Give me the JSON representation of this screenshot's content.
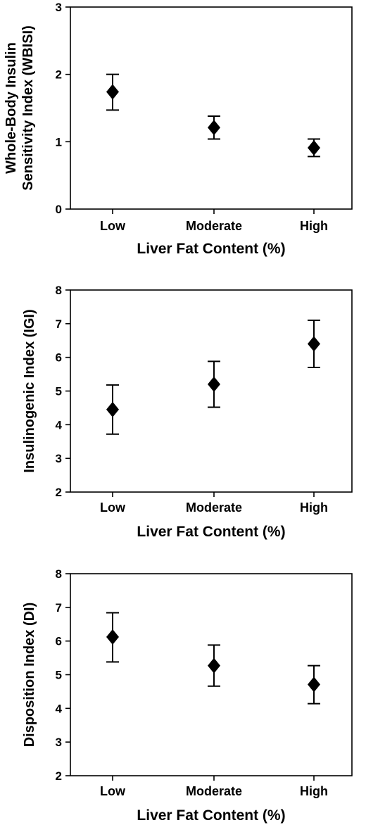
{
  "chart_data": [
    {
      "type": "scatter",
      "categories": [
        "Low",
        "Moderate",
        "High"
      ],
      "values": [
        1.74,
        1.21,
        0.91
      ],
      "error_low": [
        1.47,
        1.04,
        0.78
      ],
      "error_high": [
        2.0,
        1.38,
        1.04
      ],
      "xlabel": "Liver Fat Content (%)",
      "ylabel_lines": [
        "Whole-Body Insulin",
        "Sensitivity Index (WBISI)"
      ],
      "ylim": [
        0,
        3
      ],
      "yticks": [
        0,
        1,
        2,
        3
      ],
      "marker": "diamond",
      "grid": false
    },
    {
      "type": "scatter",
      "categories": [
        "Low",
        "Moderate",
        "High"
      ],
      "values": [
        4.45,
        5.2,
        6.4
      ],
      "error_low": [
        3.72,
        4.52,
        5.7
      ],
      "error_high": [
        5.18,
        5.88,
        7.1
      ],
      "xlabel": "Liver Fat Content (%)",
      "ylabel_lines": [
        "Insulinogenic Index (IGI)"
      ],
      "ylim": [
        2,
        8
      ],
      "yticks": [
        2,
        3,
        4,
        5,
        6,
        7,
        8
      ],
      "marker": "diamond",
      "grid": false
    },
    {
      "type": "scatter",
      "categories": [
        "Low",
        "Moderate",
        "High"
      ],
      "values": [
        6.12,
        5.27,
        4.71
      ],
      "error_low": [
        5.38,
        4.66,
        4.14
      ],
      "error_high": [
        6.84,
        5.88,
        5.27
      ],
      "xlabel": "Liver Fat Content (%)",
      "ylabel_lines": [
        "Disposition Index (DI)"
      ],
      "ylim": [
        2,
        8
      ],
      "yticks": [
        2,
        3,
        4,
        5,
        6,
        7,
        8
      ],
      "marker": "diamond",
      "grid": false
    }
  ],
  "colors": {
    "marker": "#000000",
    "axis": "#000000",
    "background": "#ffffff"
  }
}
